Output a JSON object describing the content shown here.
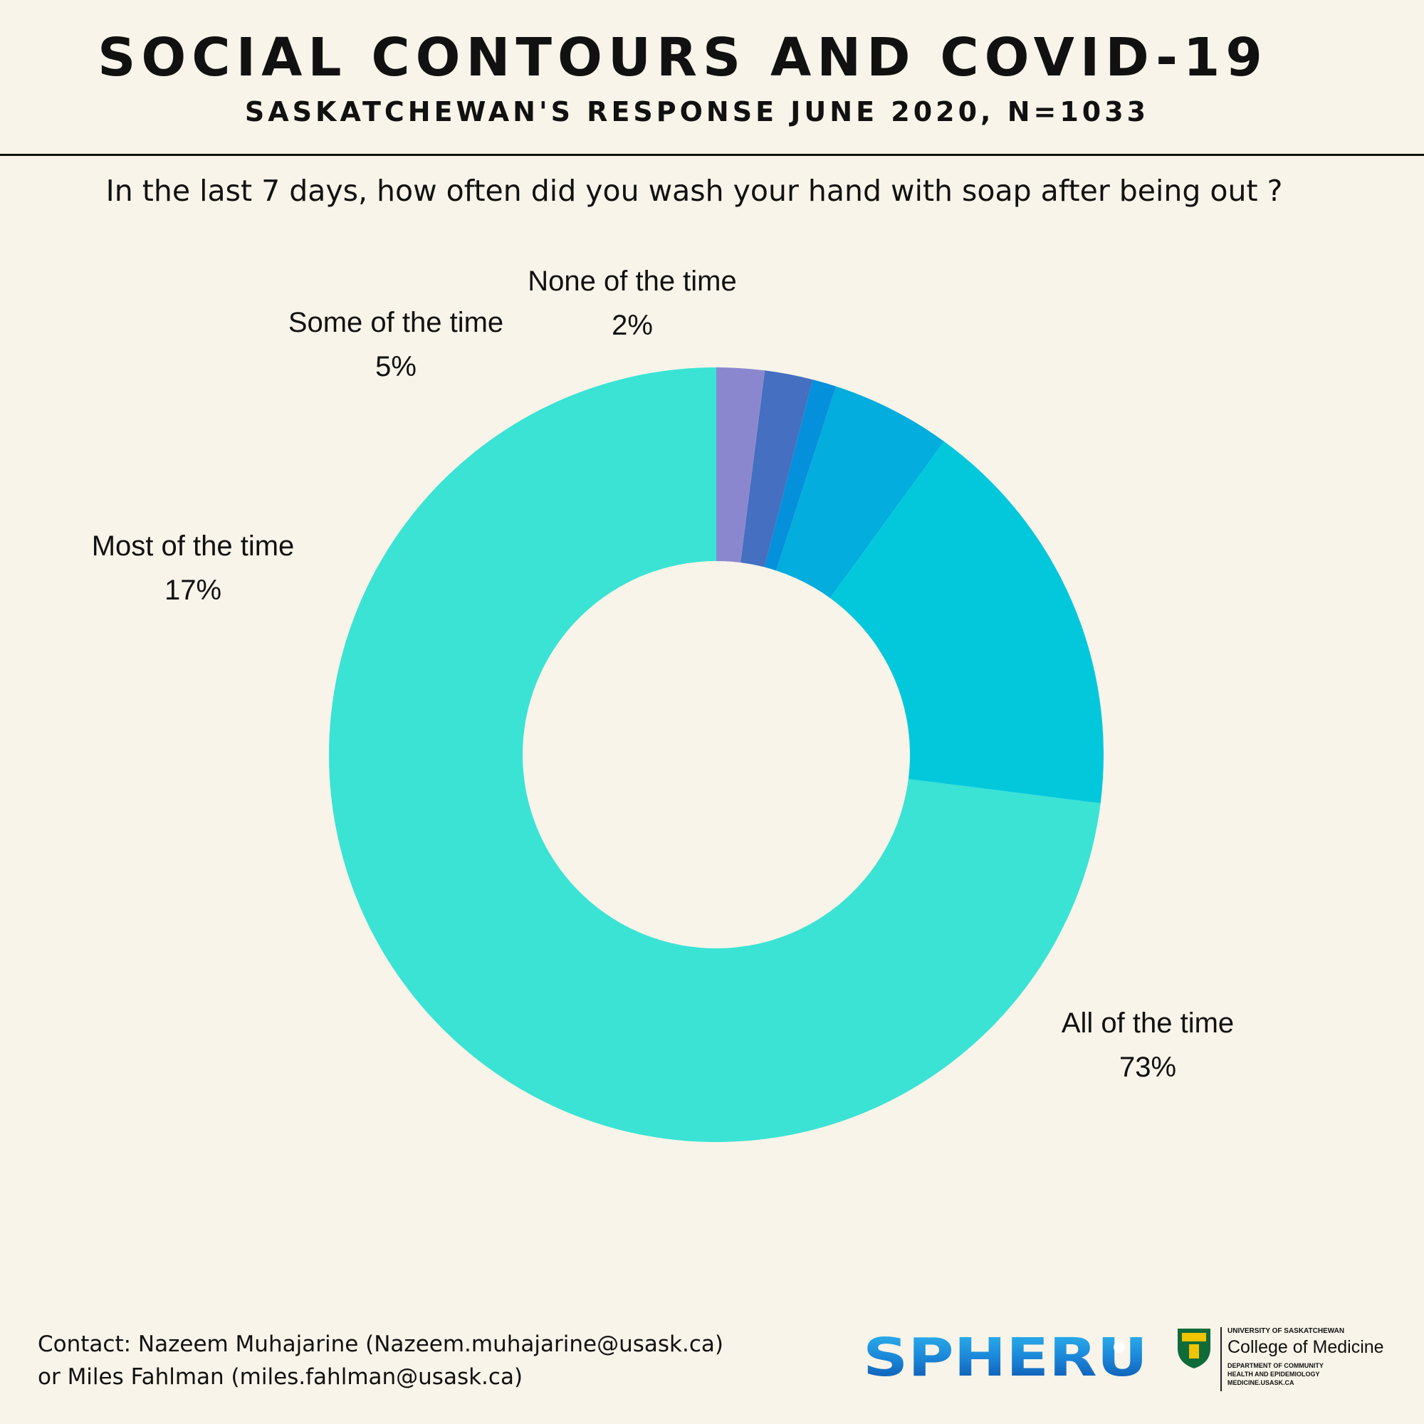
{
  "header": {
    "title": "SOCIAL CONTOURS AND COVID-19",
    "subtitle": "SASKATCHEWAN'S RESPONSE JUNE 2020, N=1033"
  },
  "question": "In the last 7 days, how often did you wash your hand with soap after being out ?",
  "chart_data": {
    "type": "pie",
    "style": "donut",
    "title": "In the last 7 days, how often did you wash your hand with soap after being out ?",
    "categories": [
      "All of the time",
      "Most of the time",
      "Some of the time",
      "",
      "",
      "None of the time"
    ],
    "values": [
      73,
      17,
      5,
      1,
      2,
      2
    ],
    "display_labels": [
      "73%",
      "17%",
      "5%",
      "",
      "",
      "2%"
    ],
    "colors": [
      "#3ae3d4",
      "#03c8dc",
      "#03addd",
      "#0590db",
      "#456fc0",
      "#8b87cf"
    ],
    "start": "top",
    "direction": "clockwise"
  },
  "footer": {
    "contact_line1": "Contact: Nazeem Muhajarine (Nazeem.muhajarine@usask.ca)",
    "contact_line2": "or Miles Fahlman (miles.fahlman@usask.ca)",
    "logo_spheru": "SPHERU",
    "usask_line1": "UNIVERSITY OF SASKATCHEWAN",
    "usask_line2": "College of Medicine",
    "usask_dept1": "DEPARTMENT OF COMMUNITY",
    "usask_dept2": "HEALTH AND EPIDEMIOLOGY",
    "usask_dept3": "MEDICINE.USASK.CA"
  }
}
